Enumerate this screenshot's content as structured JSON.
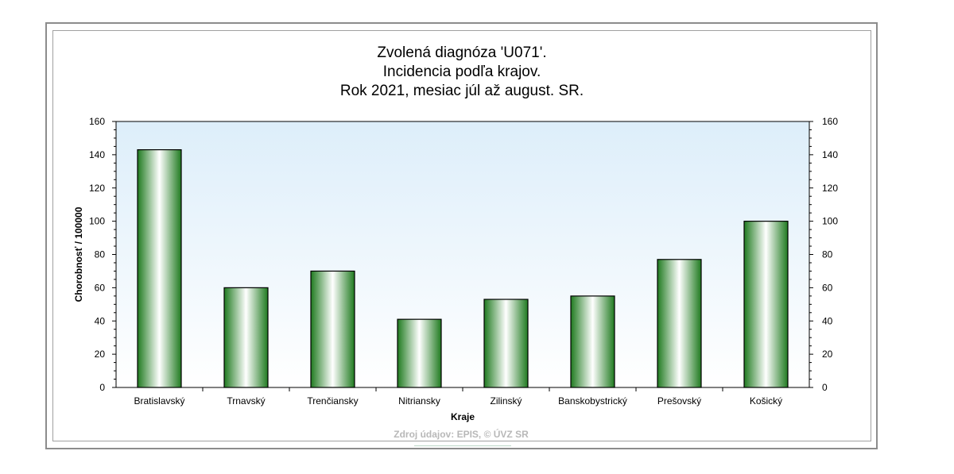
{
  "chart_data": {
    "type": "bar",
    "title_lines": [
      "Zvolená diagnóza 'U071'.",
      "Incidencia podľa krajov.",
      "Rok 2021, mesiac júl až august. SR."
    ],
    "xlabel": "Kraje",
    "ylabel": "Chorobnosť / 100000",
    "categories": [
      "Bratislavský",
      "Trnavský",
      "Trenčiansky",
      "Nitriansky",
      "Zilinský",
      "Banskobystrický",
      "Prešovský",
      "Košický"
    ],
    "values": [
      143,
      60,
      70,
      41,
      53,
      55,
      77,
      100
    ],
    "ylim": [
      0,
      160
    ],
    "yticks": [
      0,
      20,
      40,
      60,
      80,
      100,
      120,
      140,
      160
    ],
    "right_axis_mirror": true,
    "grid": false,
    "legend": "none",
    "colors": {
      "bar_edge": "#2e8b2e",
      "bar_dark": "#1f7a1f",
      "bar_light": "#ffffff",
      "plot_bg_top": "#ddeefa",
      "plot_bg_bottom": "#ffffff"
    }
  },
  "source_note": "Zdroj údajov: EPIS, © ÚVZ SR"
}
